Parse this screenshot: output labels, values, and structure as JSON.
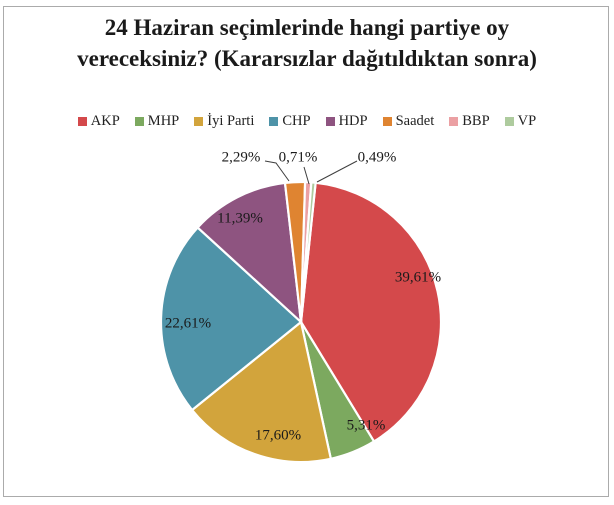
{
  "title": "24 Haziran seçimlerinde hangi partiye oy vereceksiniz? (Kararsızlar dağıtıldıktan sonra)",
  "chart_data": {
    "type": "pie",
    "title": "24 Haziran seçimlerinde hangi partiye oy vereceksiniz? (Kararsızlar dağıtıldıktan sonra)",
    "categories": [
      "AKP",
      "MHP",
      "İyi Parti",
      "CHP",
      "HDP",
      "Saadet",
      "BBP",
      "VP"
    ],
    "values": [
      39.61,
      5.31,
      17.6,
      22.61,
      11.39,
      2.29,
      0.71,
      0.49
    ],
    "value_labels": [
      "39,61%",
      "5,31%",
      "17,60%",
      "22,61%",
      "11,39%",
      "2,29%",
      "0,71%",
      "0,49%"
    ],
    "colors": [
      "#d4494b",
      "#7ca95f",
      "#d2a43c",
      "#4e93a8",
      "#8e5480",
      "#df8431",
      "#eba0a3",
      "#aecb9e"
    ],
    "legend_position": "top",
    "direction": "clockwise",
    "start_angle_deg": 6,
    "label_decimal_separator": "comma",
    "callout_slices": [
      "Saadet",
      "BBP",
      "VP"
    ],
    "background_color": "#ffffff",
    "border_color": "#ababab",
    "text_color": "#1a1a1a"
  }
}
